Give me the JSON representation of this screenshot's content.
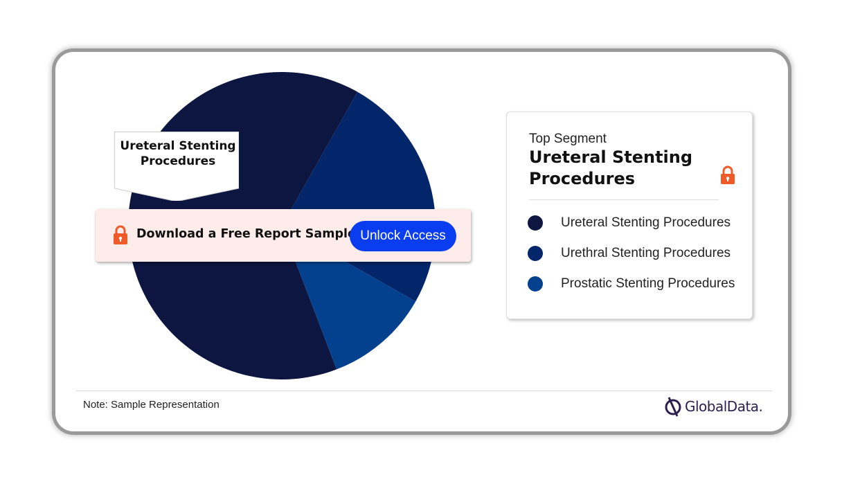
{
  "chart_data": {
    "type": "pie",
    "categories": [
      "Ureteral Stenting Procedures",
      "Urethral Stenting Procedures",
      "Prostatic Stenting Procedures"
    ],
    "values": [
      64,
      25,
      11
    ],
    "colors": [
      "#0c1640",
      "#03266a",
      "#03418f"
    ]
  },
  "callout": "Ureteral Stenting Procedures",
  "banner": {
    "text": "Download a Free Report Sample",
    "button": "Unlock Access"
  },
  "top_segment": {
    "label": "Top Segment",
    "name": "Ureteral Stenting Procedures"
  },
  "note": "Note: Sample Representation",
  "logo": "GlobalData."
}
